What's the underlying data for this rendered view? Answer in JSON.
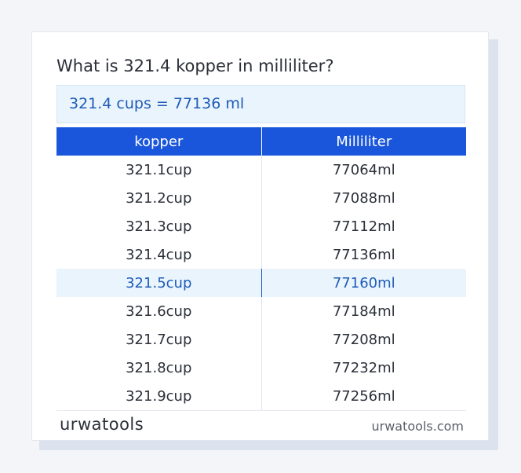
{
  "title": "What is 321.4 kopper in milliliter?",
  "result_text": "321.4 cups = 77136 ml",
  "table": {
    "headers": [
      "kopper",
      "Milliliter"
    ],
    "rows": [
      [
        "321.1cup",
        "77064ml"
      ],
      [
        "321.2cup",
        "77088ml"
      ],
      [
        "321.3cup",
        "77112ml"
      ],
      [
        "321.4cup",
        "77136ml"
      ],
      [
        "321.5cup",
        "77160ml"
      ],
      [
        "321.6cup",
        "77184ml"
      ],
      [
        "321.7cup",
        "77208ml"
      ],
      [
        "321.8cup",
        "77232ml"
      ],
      [
        "321.9cup",
        "77256ml"
      ]
    ],
    "highlighted_row": 4
  },
  "footer": {
    "logo_text": "urwatools",
    "site": "urwatools.com"
  },
  "colors": {
    "header_bg": "#1a56db",
    "accent_text": "#1e5bb8",
    "highlight_bg": "#eaf4fd"
  }
}
